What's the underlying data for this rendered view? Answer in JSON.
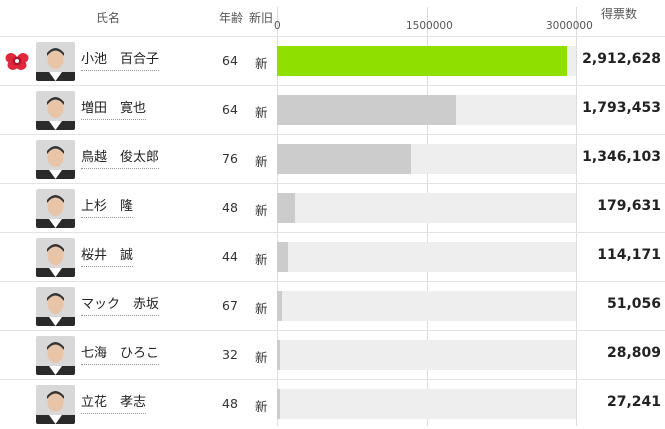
{
  "headers": {
    "name": "氏名",
    "age": "年齢",
    "status": "新旧",
    "votes": "得票数"
  },
  "scale": {
    "max": 3000000,
    "ticks": [
      "0",
      "1500000",
      "3000000"
    ]
  },
  "colors": {
    "winner_bar": "#8fe000",
    "bar": "#cccccc",
    "track": "#eeeeee",
    "winner_icon": "#e0283c"
  },
  "rows": [
    {
      "name": "小池　百合子",
      "age": "64",
      "status": "新",
      "votes_display": "2,912,628",
      "votes": 2912628,
      "winner": true,
      "winner_icon": "rose-icon"
    },
    {
      "name": "増田　寛也",
      "age": "64",
      "status": "新",
      "votes_display": "1,793,453",
      "votes": 1793453,
      "winner": false
    },
    {
      "name": "鳥越　俊太郎",
      "age": "76",
      "status": "新",
      "votes_display": "1,346,103",
      "votes": 1346103,
      "winner": false
    },
    {
      "name": "上杉　隆",
      "age": "48",
      "status": "新",
      "votes_display": "179,631",
      "votes": 179631,
      "winner": false
    },
    {
      "name": "桜井　誠",
      "age": "44",
      "status": "新",
      "votes_display": "114,171",
      "votes": 114171,
      "winner": false
    },
    {
      "name": "マック　赤坂",
      "age": "67",
      "status": "新",
      "votes_display": "51,056",
      "votes": 51056,
      "winner": false
    },
    {
      "name": "七海　ひろこ",
      "age": "32",
      "status": "新",
      "votes_display": "28,809",
      "votes": 28809,
      "winner": false
    },
    {
      "name": "立花　孝志",
      "age": "48",
      "status": "新",
      "votes_display": "27,241",
      "votes": 27241,
      "winner": false
    }
  ]
}
